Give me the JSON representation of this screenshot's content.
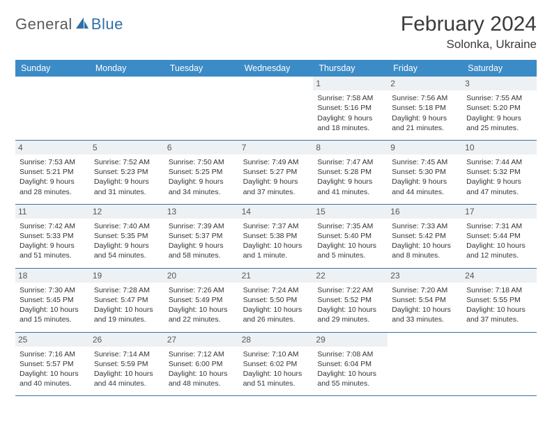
{
  "brand": {
    "part1": "General",
    "part2": "Blue"
  },
  "title": "February 2024",
  "location": "Solonka, Ukraine",
  "colors": {
    "header_bg": "#3b8bc6",
    "header_text": "#ffffff",
    "rule": "#3b6fa0",
    "daynum_bg": "#eef1f3",
    "text": "#333333",
    "logo_gray": "#5a5a5a",
    "logo_blue": "#2f6fa7"
  },
  "weekdays": [
    "Sunday",
    "Monday",
    "Tuesday",
    "Wednesday",
    "Thursday",
    "Friday",
    "Saturday"
  ],
  "grid": [
    [
      {
        "empty": true
      },
      {
        "empty": true
      },
      {
        "empty": true
      },
      {
        "empty": true
      },
      {
        "day": "1",
        "sunrise": "Sunrise: 7:58 AM",
        "sunset": "Sunset: 5:16 PM",
        "dl1": "Daylight: 9 hours",
        "dl2": "and 18 minutes."
      },
      {
        "day": "2",
        "sunrise": "Sunrise: 7:56 AM",
        "sunset": "Sunset: 5:18 PM",
        "dl1": "Daylight: 9 hours",
        "dl2": "and 21 minutes."
      },
      {
        "day": "3",
        "sunrise": "Sunrise: 7:55 AM",
        "sunset": "Sunset: 5:20 PM",
        "dl1": "Daylight: 9 hours",
        "dl2": "and 25 minutes."
      }
    ],
    [
      {
        "day": "4",
        "sunrise": "Sunrise: 7:53 AM",
        "sunset": "Sunset: 5:21 PM",
        "dl1": "Daylight: 9 hours",
        "dl2": "and 28 minutes."
      },
      {
        "day": "5",
        "sunrise": "Sunrise: 7:52 AM",
        "sunset": "Sunset: 5:23 PM",
        "dl1": "Daylight: 9 hours",
        "dl2": "and 31 minutes."
      },
      {
        "day": "6",
        "sunrise": "Sunrise: 7:50 AM",
        "sunset": "Sunset: 5:25 PM",
        "dl1": "Daylight: 9 hours",
        "dl2": "and 34 minutes."
      },
      {
        "day": "7",
        "sunrise": "Sunrise: 7:49 AM",
        "sunset": "Sunset: 5:27 PM",
        "dl1": "Daylight: 9 hours",
        "dl2": "and 37 minutes."
      },
      {
        "day": "8",
        "sunrise": "Sunrise: 7:47 AM",
        "sunset": "Sunset: 5:28 PM",
        "dl1": "Daylight: 9 hours",
        "dl2": "and 41 minutes."
      },
      {
        "day": "9",
        "sunrise": "Sunrise: 7:45 AM",
        "sunset": "Sunset: 5:30 PM",
        "dl1": "Daylight: 9 hours",
        "dl2": "and 44 minutes."
      },
      {
        "day": "10",
        "sunrise": "Sunrise: 7:44 AM",
        "sunset": "Sunset: 5:32 PM",
        "dl1": "Daylight: 9 hours",
        "dl2": "and 47 minutes."
      }
    ],
    [
      {
        "day": "11",
        "sunrise": "Sunrise: 7:42 AM",
        "sunset": "Sunset: 5:33 PM",
        "dl1": "Daylight: 9 hours",
        "dl2": "and 51 minutes."
      },
      {
        "day": "12",
        "sunrise": "Sunrise: 7:40 AM",
        "sunset": "Sunset: 5:35 PM",
        "dl1": "Daylight: 9 hours",
        "dl2": "and 54 minutes."
      },
      {
        "day": "13",
        "sunrise": "Sunrise: 7:39 AM",
        "sunset": "Sunset: 5:37 PM",
        "dl1": "Daylight: 9 hours",
        "dl2": "and 58 minutes."
      },
      {
        "day": "14",
        "sunrise": "Sunrise: 7:37 AM",
        "sunset": "Sunset: 5:38 PM",
        "dl1": "Daylight: 10 hours",
        "dl2": "and 1 minute."
      },
      {
        "day": "15",
        "sunrise": "Sunrise: 7:35 AM",
        "sunset": "Sunset: 5:40 PM",
        "dl1": "Daylight: 10 hours",
        "dl2": "and 5 minutes."
      },
      {
        "day": "16",
        "sunrise": "Sunrise: 7:33 AM",
        "sunset": "Sunset: 5:42 PM",
        "dl1": "Daylight: 10 hours",
        "dl2": "and 8 minutes."
      },
      {
        "day": "17",
        "sunrise": "Sunrise: 7:31 AM",
        "sunset": "Sunset: 5:44 PM",
        "dl1": "Daylight: 10 hours",
        "dl2": "and 12 minutes."
      }
    ],
    [
      {
        "day": "18",
        "sunrise": "Sunrise: 7:30 AM",
        "sunset": "Sunset: 5:45 PM",
        "dl1": "Daylight: 10 hours",
        "dl2": "and 15 minutes."
      },
      {
        "day": "19",
        "sunrise": "Sunrise: 7:28 AM",
        "sunset": "Sunset: 5:47 PM",
        "dl1": "Daylight: 10 hours",
        "dl2": "and 19 minutes."
      },
      {
        "day": "20",
        "sunrise": "Sunrise: 7:26 AM",
        "sunset": "Sunset: 5:49 PM",
        "dl1": "Daylight: 10 hours",
        "dl2": "and 22 minutes."
      },
      {
        "day": "21",
        "sunrise": "Sunrise: 7:24 AM",
        "sunset": "Sunset: 5:50 PM",
        "dl1": "Daylight: 10 hours",
        "dl2": "and 26 minutes."
      },
      {
        "day": "22",
        "sunrise": "Sunrise: 7:22 AM",
        "sunset": "Sunset: 5:52 PM",
        "dl1": "Daylight: 10 hours",
        "dl2": "and 29 minutes."
      },
      {
        "day": "23",
        "sunrise": "Sunrise: 7:20 AM",
        "sunset": "Sunset: 5:54 PM",
        "dl1": "Daylight: 10 hours",
        "dl2": "and 33 minutes."
      },
      {
        "day": "24",
        "sunrise": "Sunrise: 7:18 AM",
        "sunset": "Sunset: 5:55 PM",
        "dl1": "Daylight: 10 hours",
        "dl2": "and 37 minutes."
      }
    ],
    [
      {
        "day": "25",
        "sunrise": "Sunrise: 7:16 AM",
        "sunset": "Sunset: 5:57 PM",
        "dl1": "Daylight: 10 hours",
        "dl2": "and 40 minutes."
      },
      {
        "day": "26",
        "sunrise": "Sunrise: 7:14 AM",
        "sunset": "Sunset: 5:59 PM",
        "dl1": "Daylight: 10 hours",
        "dl2": "and 44 minutes."
      },
      {
        "day": "27",
        "sunrise": "Sunrise: 7:12 AM",
        "sunset": "Sunset: 6:00 PM",
        "dl1": "Daylight: 10 hours",
        "dl2": "and 48 minutes."
      },
      {
        "day": "28",
        "sunrise": "Sunrise: 7:10 AM",
        "sunset": "Sunset: 6:02 PM",
        "dl1": "Daylight: 10 hours",
        "dl2": "and 51 minutes."
      },
      {
        "day": "29",
        "sunrise": "Sunrise: 7:08 AM",
        "sunset": "Sunset: 6:04 PM",
        "dl1": "Daylight: 10 hours",
        "dl2": "and 55 minutes."
      },
      {
        "empty": true
      },
      {
        "empty": true
      }
    ]
  ]
}
